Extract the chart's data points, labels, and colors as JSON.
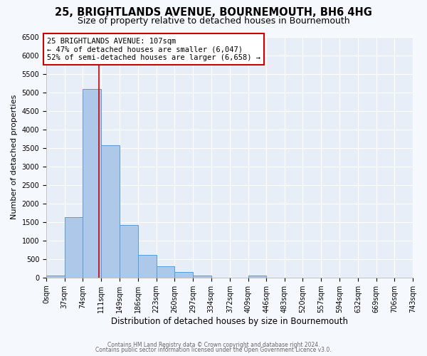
{
  "title": "25, BRIGHTLANDS AVENUE, BOURNEMOUTH, BH6 4HG",
  "subtitle": "Size of property relative to detached houses in Bournemouth",
  "xlabel": "Distribution of detached houses by size in Bournemouth",
  "ylabel": "Number of detached properties",
  "bar_edges": [
    0,
    37,
    74,
    111,
    149,
    186,
    223,
    260,
    297,
    334,
    372,
    409,
    446,
    483,
    520,
    557,
    594,
    632,
    669,
    706,
    743
  ],
  "bar_heights": [
    50,
    1620,
    5080,
    3570,
    1420,
    610,
    300,
    150,
    60,
    0,
    0,
    50,
    0,
    0,
    0,
    0,
    0,
    0,
    0,
    0
  ],
  "bar_facecolor": "#adc8e8",
  "bar_edgecolor": "#5b9bd5",
  "property_line_x": 107,
  "annotation_line1": "25 BRIGHTLANDS AVENUE: 107sqm",
  "annotation_line2": "← 47% of detached houses are smaller (6,047)",
  "annotation_line3": "52% of semi-detached houses are larger (6,658) →",
  "annotation_box_edgecolor": "#cc0000",
  "annotation_box_facecolor": "#ffffff",
  "vline_color": "#cc0000",
  "ylim": [
    0,
    6500
  ],
  "yticks": [
    0,
    500,
    1000,
    1500,
    2000,
    2500,
    3000,
    3500,
    4000,
    4500,
    5000,
    5500,
    6000,
    6500
  ],
  "footer_line1": "Contains HM Land Registry data © Crown copyright and database right 2024.",
  "footer_line2": "Contains public sector information licensed under the Open Government Licence v3.0.",
  "plot_bg_color": "#e8eef7",
  "fig_bg_color": "#f5f8fd",
  "grid_color": "#ffffff",
  "title_fontsize": 10.5,
  "subtitle_fontsize": 9,
  "xlabel_fontsize": 8.5,
  "ylabel_fontsize": 8,
  "tick_fontsize": 7,
  "annotation_fontsize": 7.5,
  "footer_fontsize": 5.5
}
